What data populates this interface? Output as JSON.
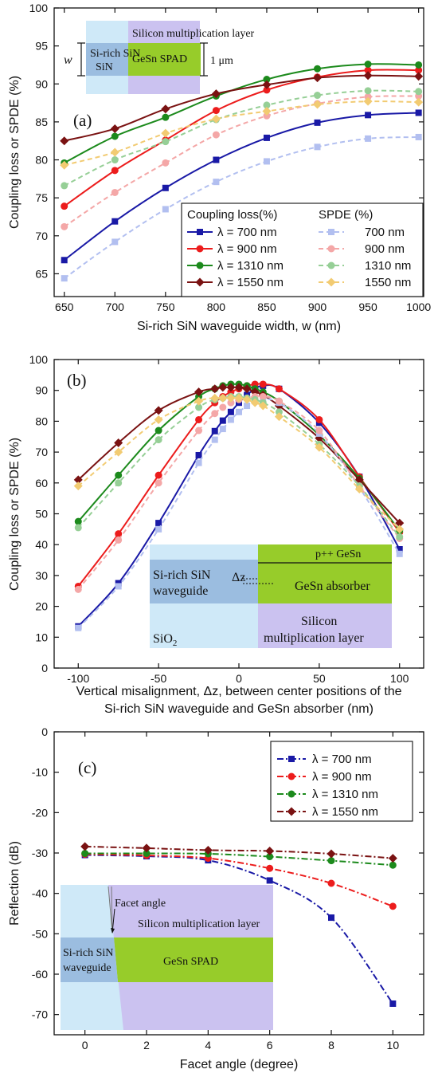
{
  "colors": {
    "blue": "#1919a6",
    "red": "#ec1c1c",
    "green": "#1c8a1c",
    "darkred": "#7a1212",
    "lightblue": "#b2bff0",
    "lightred": "#f4a7a7",
    "lightgreen": "#96cf96",
    "lightorange": "#f2cb72",
    "inset_sky": "#cfe9f8",
    "inset_purple": "#cbc2f0",
    "inset_green": "#97cc2a",
    "inset_blue": "#9bbde0"
  },
  "chart_data": [
    {
      "id": "a",
      "type": "line",
      "panel_label": "(a)",
      "xlabel": "Si-rich SiN waveguide width, w (nm)",
      "ylabel": "Coupling loss or SPDE (%)",
      "xlim": [
        640,
        1005
      ],
      "ylim": [
        62,
        100
      ],
      "xticks": [
        650,
        700,
        750,
        800,
        850,
        900,
        950,
        1000
      ],
      "yticks": [
        65,
        70,
        75,
        80,
        85,
        90,
        95,
        100
      ],
      "x": [
        650,
        700,
        750,
        800,
        850,
        900,
        950,
        1000
      ],
      "legend": {
        "position": "bottom-right",
        "group_titles": [
          "Coupling loss(%)",
          "SPDE (%)"
        ]
      },
      "series": [
        {
          "name": "λ = 700 nm",
          "group": "coupling",
          "color": "blue",
          "dashed": false,
          "marker": "square",
          "values": [
            66.8,
            71.9,
            76.3,
            80.0,
            82.9,
            84.9,
            85.9,
            86.2
          ]
        },
        {
          "name": "λ = 900 nm",
          "group": "coupling",
          "color": "red",
          "dashed": false,
          "marker": "circle",
          "values": [
            73.9,
            78.6,
            82.6,
            86.5,
            89.2,
            90.9,
            91.8,
            91.8
          ]
        },
        {
          "name": "λ = 1310 nm",
          "group": "coupling",
          "color": "green",
          "dashed": false,
          "marker": "circle",
          "values": [
            79.6,
            83.1,
            85.6,
            88.4,
            90.6,
            92.0,
            92.6,
            92.5
          ]
        },
        {
          "name": "λ = 1550 nm",
          "group": "coupling",
          "color": "darkred",
          "dashed": false,
          "marker": "diamond",
          "values": [
            82.5,
            84.1,
            86.7,
            88.7,
            89.9,
            90.8,
            91.1,
            91.0
          ]
        },
        {
          "name": "700 nm",
          "group": "spde",
          "color": "lightblue",
          "dashed": true,
          "marker": "square",
          "values": [
            64.4,
            69.2,
            73.5,
            77.1,
            79.8,
            81.7,
            82.8,
            83.0
          ]
        },
        {
          "name": "900 nm",
          "group": "spde",
          "color": "lightred",
          "dashed": true,
          "marker": "circle",
          "values": [
            71.2,
            75.7,
            79.6,
            83.3,
            85.8,
            87.4,
            88.3,
            88.4
          ]
        },
        {
          "name": "1310 nm",
          "group": "spde",
          "color": "lightgreen",
          "dashed": true,
          "marker": "circle",
          "values": [
            76.6,
            80.0,
            82.4,
            85.3,
            87.2,
            88.5,
            89.1,
            89.0
          ]
        },
        {
          "name": "1550 nm",
          "group": "spde",
          "color": "lightorange",
          "dashed": true,
          "marker": "diamond",
          "values": [
            79.3,
            81.0,
            83.5,
            85.4,
            86.4,
            87.3,
            87.7,
            87.6
          ]
        }
      ],
      "inset": {
        "label_top": "Silicon multiplication layer",
        "label_left": "Si-rich SiN",
        "label_center": "GeSn SPAD",
        "label_w": "w",
        "label_thickness": "1 μm"
      }
    },
    {
      "id": "b",
      "type": "line",
      "panel_label": "(b)",
      "xlabel_line1": "Vertical misalignment, Δz, between center positions of the",
      "xlabel_line2": "Si-rich SiN waveguide and GeSn absorber (nm)",
      "ylabel": "Coupling loss or SPDE (%)",
      "xlim": [
        -115,
        115
      ],
      "ylim": [
        0,
        100
      ],
      "xticks": [
        -100,
        -50,
        0,
        50,
        100
      ],
      "yticks": [
        0,
        10,
        20,
        30,
        40,
        50,
        60,
        70,
        80,
        90,
        100
      ],
      "series": [
        {
          "name": "λ = 700 nm",
          "color": "blue",
          "dashed": false,
          "marker": "square",
          "x": [
            -100,
            -75,
            -50,
            -25,
            -15,
            -10,
            -5,
            0,
            5,
            10,
            15,
            25,
            50,
            75,
            100
          ],
          "values": [
            13.5,
            27.5,
            47.0,
            69.0,
            76.8,
            80.2,
            83.0,
            86.0,
            88.5,
            90.5,
            91.5,
            90.5,
            79.5,
            62.0,
            38.5
          ]
        },
        {
          "name": "λ = 900 nm",
          "color": "red",
          "dashed": false,
          "marker": "circle",
          "x": [
            -100,
            -75,
            -50,
            -25,
            -15,
            -10,
            -5,
            0,
            5,
            10,
            15,
            25,
            50,
            75,
            100
          ],
          "values": [
            26.5,
            43.5,
            62.5,
            80.5,
            86.0,
            88.0,
            89.5,
            90.5,
            91.5,
            92.0,
            92.0,
            90.5,
            80.5,
            62.0,
            44.0
          ]
        },
        {
          "name": "λ = 1310 nm",
          "color": "green",
          "dashed": false,
          "marker": "circle",
          "x": [
            -100,
            -75,
            -50,
            -25,
            -15,
            -10,
            -5,
            0,
            5,
            10,
            15,
            25,
            50,
            75,
            100
          ],
          "values": [
            47.5,
            62.5,
            77.0,
            88.0,
            90.5,
            91.5,
            92.0,
            92.0,
            91.5,
            90.5,
            89.5,
            86.5,
            75.5,
            61.5,
            44.5
          ]
        },
        {
          "name": "λ = 1550 nm",
          "color": "darkred",
          "dashed": false,
          "marker": "diamond",
          "x": [
            -100,
            -75,
            -50,
            -25,
            -15,
            -10,
            -5,
            0,
            5,
            10,
            15,
            25,
            50,
            75,
            100
          ],
          "values": [
            61.0,
            73.0,
            83.5,
            89.5,
            90.5,
            91.0,
            91.0,
            91.0,
            90.5,
            89.5,
            88.5,
            85.0,
            74.5,
            61.0,
            47.0
          ]
        },
        {
          "name": "SPDE 700 nm",
          "color": "lightblue",
          "dashed": true,
          "marker": "square",
          "x": [
            -100,
            -75,
            -50,
            -25,
            -15,
            -10,
            -5,
            0,
            5,
            10,
            15,
            25,
            50,
            75,
            100
          ],
          "values": [
            13.0,
            26.5,
            45.0,
            66.5,
            74.0,
            77.5,
            80.5,
            83.0,
            85.0,
            86.5,
            87.0,
            86.0,
            76.0,
            58.5,
            37.0
          ]
        },
        {
          "name": "SPDE 900 nm",
          "color": "lightred",
          "dashed": true,
          "marker": "circle",
          "x": [
            -100,
            -75,
            -50,
            -25,
            -15,
            -10,
            -5,
            0,
            5,
            10,
            15,
            25,
            50,
            75,
            100
          ],
          "values": [
            25.5,
            41.5,
            60.0,
            77.0,
            82.5,
            84.5,
            86.0,
            87.0,
            87.5,
            88.0,
            88.0,
            86.5,
            77.0,
            59.0,
            42.0
          ]
        },
        {
          "name": "SPDE 1310 nm",
          "color": "lightgreen",
          "dashed": true,
          "marker": "circle",
          "x": [
            -100,
            -75,
            -50,
            -25,
            -15,
            -10,
            -5,
            0,
            5,
            10,
            15,
            25,
            50,
            75,
            100
          ],
          "values": [
            45.5,
            60.0,
            74.0,
            84.5,
            87.0,
            87.5,
            88.0,
            88.0,
            87.5,
            87.0,
            86.0,
            83.0,
            72.5,
            59.0,
            42.5
          ]
        },
        {
          "name": "SPDE 1550 nm",
          "color": "lightorange",
          "dashed": true,
          "marker": "diamond",
          "x": [
            -100,
            -75,
            -50,
            -25,
            -15,
            -10,
            -5,
            0,
            5,
            10,
            15,
            25,
            50,
            75,
            100
          ],
          "values": [
            59.0,
            70.0,
            80.5,
            86.5,
            87.5,
            87.5,
            87.5,
            87.5,
            87.0,
            86.0,
            85.0,
            81.5,
            71.5,
            58.0,
            45.0
          ]
        }
      ],
      "inset": {
        "label_waveguide": "Si-rich SiN\nwaveguide",
        "label_dz": "Δz",
        "label_pgesn": "p++ GeSn",
        "label_absorber": "GeSn absorber",
        "label_mult": "Silicon\nmultiplication layer",
        "label_sio2": "SiO",
        "label_sio2_sub": "2"
      }
    },
    {
      "id": "c",
      "type": "line",
      "panel_label": "(c)",
      "xlabel": "Facet angle (degree)",
      "ylabel": "Reflection (dB)",
      "xlim": [
        -1,
        11
      ],
      "ylim": [
        -75,
        0
      ],
      "xticks": [
        0,
        2,
        4,
        6,
        8,
        10
      ],
      "yticks": [
        0,
        -10,
        -20,
        -30,
        -40,
        -50,
        -60,
        -70
      ],
      "x": [
        0,
        2,
        4,
        6,
        8,
        10
      ],
      "legend": {
        "position": "top-right"
      },
      "series": [
        {
          "name": "λ = 700 nm",
          "color": "blue",
          "dashed": true,
          "marker": "square",
          "values": [
            -30.5,
            -30.8,
            -31.8,
            -36.8,
            -46.0,
            -67.3
          ]
        },
        {
          "name": "λ = 900 nm",
          "color": "red",
          "dashed": true,
          "marker": "circle",
          "values": [
            -30.3,
            -30.6,
            -31.3,
            -33.8,
            -37.5,
            -43.2
          ]
        },
        {
          "name": "λ = 1310 nm",
          "color": "green",
          "dashed": true,
          "marker": "circle",
          "values": [
            -30.1,
            -30.1,
            -30.2,
            -30.9,
            -31.9,
            -33.0
          ]
        },
        {
          "name": "λ = 1550 nm",
          "color": "darkred",
          "dashed": true,
          "marker": "diamond",
          "values": [
            -28.4,
            -28.8,
            -29.3,
            -29.5,
            -30.2,
            -31.3
          ]
        }
      ],
      "inset": {
        "label_facet": "Facet angle",
        "label_mult": "Silicon multiplication layer",
        "label_waveguide": "Si-rich SiN\nwaveguide",
        "label_spad": "GeSn SPAD"
      }
    }
  ]
}
